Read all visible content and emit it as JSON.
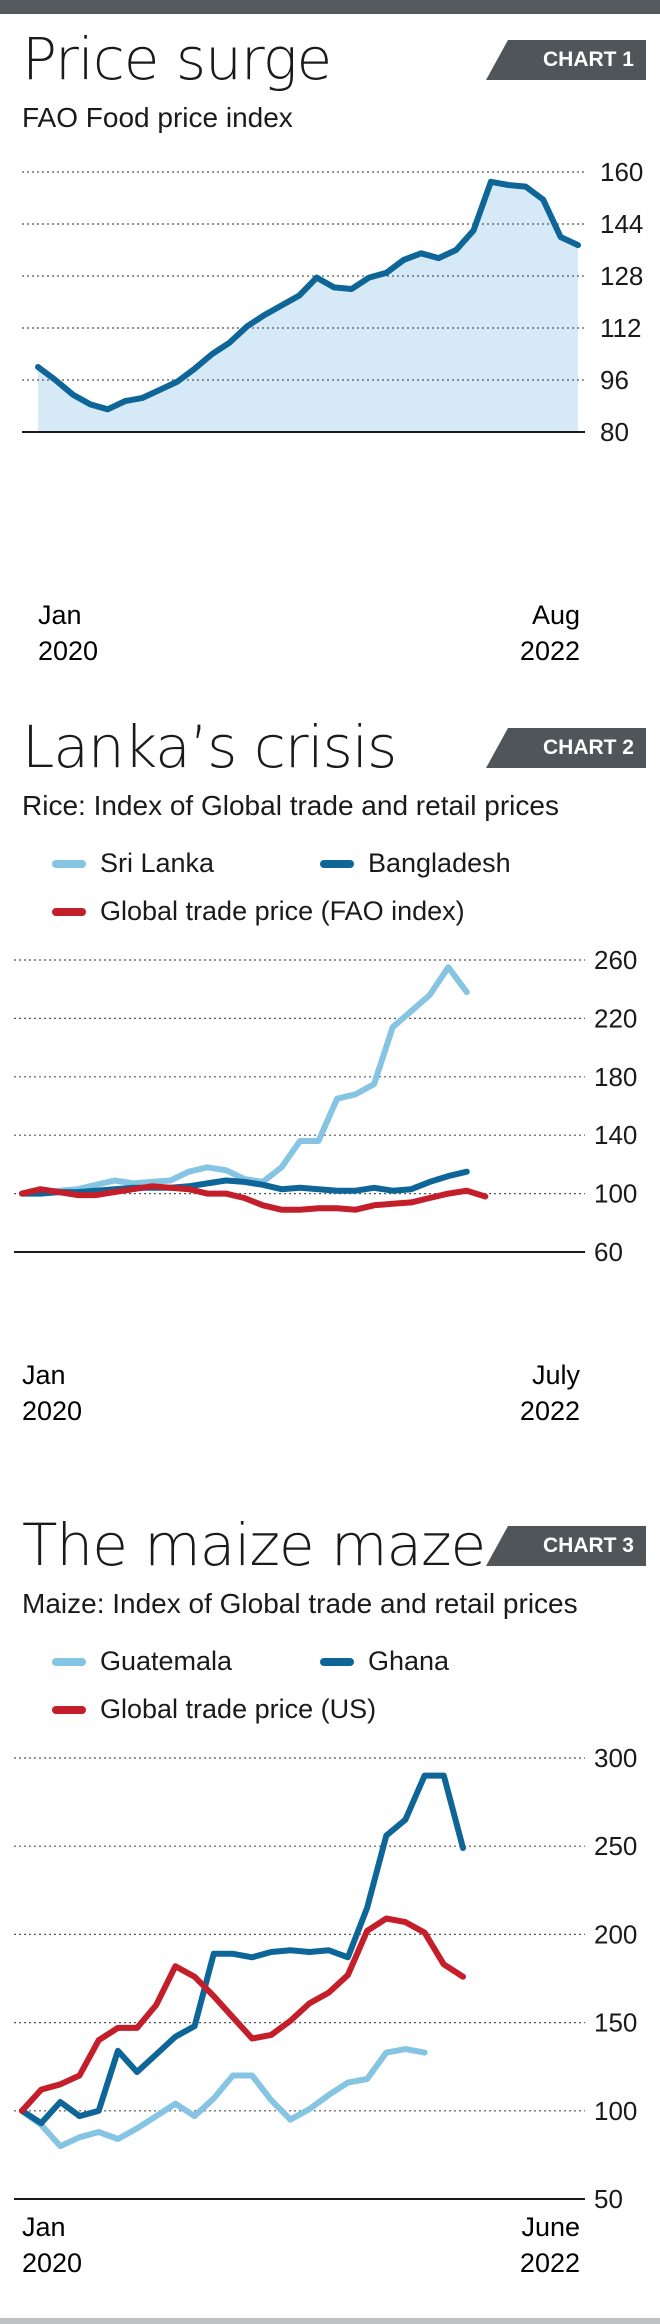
{
  "colors": {
    "area_fill": "#d6e9f6",
    "dark_blue": "#0d6697",
    "light_blue": "#86c4e4",
    "red": "#c41e2a",
    "grid": "#555555",
    "axis": "#1a1a1a"
  },
  "charts": [
    {
      "title": "Price surge",
      "badge": "CHART 1",
      "subtitle": "FAO Food price index",
      "x_start_month": "Jan",
      "x_start_year": "2020",
      "x_end_month": "Aug",
      "x_end_year": "2022",
      "legend": []
    },
    {
      "title": "Lanka’s crisis",
      "badge": "CHART 2",
      "subtitle": "Rice: Index of Global trade and retail prices",
      "x_start_month": "Jan",
      "x_start_year": "2020",
      "x_end_month": "July",
      "x_end_year": "2022",
      "legend": [
        "Sri Lanka",
        "Bangladesh",
        "Global trade price (FAO index)"
      ]
    },
    {
      "title": "The maize maze",
      "badge": "CHART 3",
      "subtitle": "Maize: Index of Global trade and retail prices",
      "x_start_month": "Jan",
      "x_start_year": "2020",
      "x_end_month": "June",
      "x_end_year": "2022",
      "legend": [
        "Guatemala",
        "Ghana",
        "Global trade price (US)"
      ]
    }
  ],
  "chart_data": [
    {
      "type": "area",
      "title": "FAO Food price index",
      "x_range": [
        "Jan 2020",
        "Aug 2022"
      ],
      "ylim": [
        80,
        160
      ],
      "yticks": [
        80,
        96,
        112,
        128,
        144,
        160
      ],
      "grid": true,
      "series": [
        {
          "values": [
            100,
            96,
            91.5,
            88.5,
            87,
            89.5,
            90.5,
            93,
            95.5,
            99.5,
            104,
            107.5,
            112.5,
            116,
            119,
            122,
            127.5,
            124.5,
            124,
            127.5,
            129,
            133,
            135,
            133.5,
            136,
            142,
            157,
            156,
            155.5,
            151.5,
            140,
            137.5
          ]
        }
      ]
    },
    {
      "type": "line",
      "title": "Rice: Index of Global trade and retail prices",
      "x_range": [
        "Jan 2020",
        "July 2022"
      ],
      "ylim": [
        60,
        260
      ],
      "yticks": [
        60,
        100,
        140,
        180,
        220,
        260
      ],
      "grid": true,
      "legend_position": "top-left",
      "series": [
        {
          "name": "Sri Lanka",
          "values": [
            100,
            101,
            102,
            103,
            106,
            109,
            107,
            108,
            109,
            115,
            118,
            116,
            110,
            108,
            118,
            136,
            136,
            165,
            168,
            175,
            214,
            225,
            236,
            255,
            238
          ]
        },
        {
          "name": "Bangladesh",
          "values": [
            100,
            100,
            101,
            101,
            102,
            103,
            104,
            104,
            104,
            105,
            107,
            109,
            108,
            106,
            103,
            104,
            103,
            102,
            102,
            104,
            102,
            103,
            108,
            112,
            115
          ]
        },
        {
          "name": "Global trade price (FAO index)",
          "values": [
            100,
            103,
            101,
            99,
            99,
            101,
            103,
            105,
            104,
            103,
            100,
            100,
            97,
            92,
            89,
            89,
            90,
            90,
            89,
            92,
            93,
            94,
            97,
            100,
            102,
            98
          ]
        }
      ]
    },
    {
      "type": "line",
      "title": "Maize: Index of Global trade and retail prices",
      "x_range": [
        "Jan 2020",
        "June 2022"
      ],
      "ylim": [
        50,
        300
      ],
      "yticks": [
        50,
        100,
        150,
        200,
        250,
        300
      ],
      "grid": true,
      "legend_position": "top-left",
      "series": [
        {
          "name": "Guatemala",
          "values": [
            100,
            92,
            80,
            85,
            88,
            84,
            90,
            97,
            104,
            97,
            107,
            120,
            120,
            106,
            95,
            101,
            109,
            116,
            118,
            133,
            135,
            133
          ]
        },
        {
          "name": "Ghana",
          "values": [
            100,
            93,
            105,
            97,
            100,
            134,
            122,
            132,
            142,
            148,
            189,
            189,
            187,
            190,
            191,
            190,
            191,
            187,
            215,
            256,
            265,
            290,
            290,
            249
          ]
        },
        {
          "name": "Global trade price (US)",
          "values": [
            100,
            112,
            115,
            120,
            140,
            147,
            147,
            160,
            182,
            176,
            165,
            153,
            141,
            143,
            151,
            161,
            167,
            177,
            202,
            209,
            207,
            201,
            183,
            176
          ]
        }
      ]
    }
  ]
}
